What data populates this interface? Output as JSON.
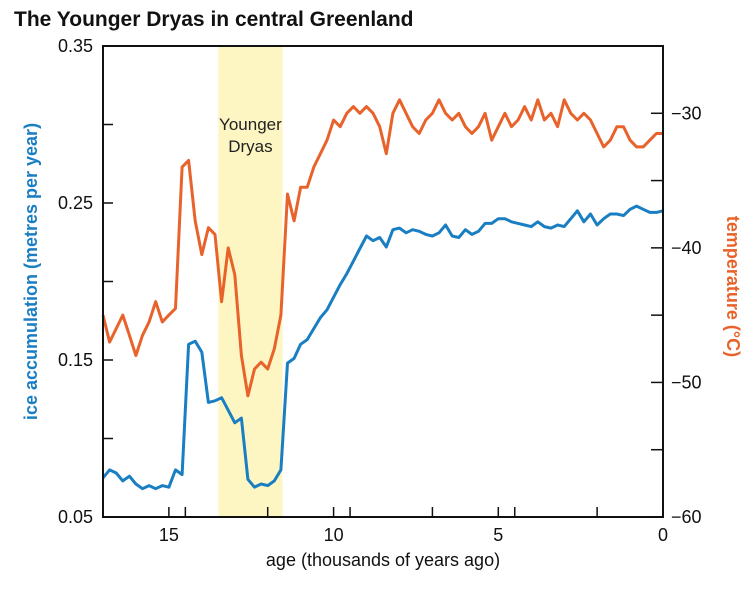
{
  "chart_data": {
    "type": "line",
    "title": "The Younger Dryas in central Greenland",
    "xlabel": "age (thousands of years ago)",
    "ylabel_left": "ice accumulation (metres per year)",
    "ylabel_right": "temperature (°C)",
    "x_range": [
      17,
      0
    ],
    "x_reversed": true,
    "x_ticks": [
      15,
      10,
      5,
      0
    ],
    "x_tick_labels": [
      "15",
      "10",
      "5",
      "0"
    ],
    "ylim_left": [
      0.05,
      0.35
    ],
    "y_left_ticks": [
      0.05,
      0.15,
      0.25,
      0.35
    ],
    "y_left_tick_labels": [
      "0.05",
      "0.15",
      "0.25",
      "0.35"
    ],
    "ylim_right": [
      -60,
      -25
    ],
    "y_right_ticks": [
      -60,
      -50,
      -40,
      -30
    ],
    "y_right_tick_labels": [
      "−60",
      "−50",
      "−40",
      "−30"
    ],
    "highlight_band": {
      "label_line1": "Younger",
      "label_line2": "Dryas",
      "x_start": 13.5,
      "x_end": 11.55,
      "color": "#fdf6c3"
    },
    "colors": {
      "ice": "#1a7ec2",
      "temperature": "#e8632b",
      "axes": "#111111"
    },
    "series": [
      {
        "name": "ice accumulation",
        "axis": "left",
        "color": "#1a7ec2",
        "x": [
          17.0,
          16.8,
          16.6,
          16.4,
          16.2,
          16.0,
          15.8,
          15.6,
          15.4,
          15.2,
          15.0,
          14.8,
          14.6,
          14.4,
          14.2,
          14.0,
          13.8,
          13.6,
          13.4,
          13.2,
          13.0,
          12.8,
          12.6,
          12.4,
          12.2,
          12.0,
          11.8,
          11.6,
          11.4,
          11.2,
          11.0,
          10.8,
          10.6,
          10.4,
          10.2,
          10.0,
          9.8,
          9.6,
          9.4,
          9.2,
          9.0,
          8.8,
          8.6,
          8.4,
          8.2,
          8.0,
          7.8,
          7.6,
          7.4,
          7.2,
          7.0,
          6.8,
          6.6,
          6.4,
          6.2,
          6.0,
          5.8,
          5.6,
          5.4,
          5.2,
          5.0,
          4.8,
          4.6,
          4.4,
          4.2,
          4.0,
          3.8,
          3.6,
          3.4,
          3.2,
          3.0,
          2.8,
          2.6,
          2.4,
          2.2,
          2.0,
          1.8,
          1.6,
          1.4,
          1.2,
          1.0,
          0.8,
          0.6,
          0.4,
          0.2,
          0.0
        ],
        "values": [
          0.075,
          0.08,
          0.078,
          0.073,
          0.076,
          0.071,
          0.068,
          0.07,
          0.068,
          0.07,
          0.069,
          0.08,
          0.077,
          0.16,
          0.162,
          0.155,
          0.123,
          0.124,
          0.126,
          0.118,
          0.11,
          0.113,
          0.074,
          0.069,
          0.071,
          0.07,
          0.073,
          0.08,
          0.148,
          0.151,
          0.16,
          0.163,
          0.17,
          0.177,
          0.182,
          0.19,
          0.198,
          0.205,
          0.213,
          0.221,
          0.229,
          0.226,
          0.228,
          0.222,
          0.233,
          0.234,
          0.231,
          0.233,
          0.232,
          0.23,
          0.229,
          0.231,
          0.236,
          0.229,
          0.228,
          0.233,
          0.23,
          0.232,
          0.237,
          0.237,
          0.24,
          0.24,
          0.238,
          0.237,
          0.236,
          0.235,
          0.238,
          0.235,
          0.234,
          0.236,
          0.235,
          0.24,
          0.245,
          0.238,
          0.243,
          0.236,
          0.24,
          0.243,
          0.243,
          0.242,
          0.246,
          0.248,
          0.246,
          0.244,
          0.244,
          0.245
        ]
      },
      {
        "name": "temperature",
        "axis": "right",
        "color": "#e8632b",
        "x": [
          17.0,
          16.8,
          16.6,
          16.4,
          16.2,
          16.0,
          15.8,
          15.6,
          15.4,
          15.2,
          15.0,
          14.8,
          14.6,
          14.4,
          14.2,
          14.0,
          13.8,
          13.6,
          13.4,
          13.2,
          13.0,
          12.8,
          12.6,
          12.4,
          12.2,
          12.0,
          11.8,
          11.6,
          11.4,
          11.2,
          11.0,
          10.8,
          10.6,
          10.4,
          10.2,
          10.0,
          9.8,
          9.6,
          9.4,
          9.2,
          9.0,
          8.8,
          8.6,
          8.4,
          8.2,
          8.0,
          7.8,
          7.6,
          7.4,
          7.2,
          7.0,
          6.8,
          6.6,
          6.4,
          6.2,
          6.0,
          5.8,
          5.6,
          5.4,
          5.2,
          5.0,
          4.8,
          4.6,
          4.4,
          4.2,
          4.0,
          3.8,
          3.6,
          3.4,
          3.2,
          3.0,
          2.8,
          2.6,
          2.4,
          2.2,
          2.0,
          1.8,
          1.6,
          1.4,
          1.2,
          1.0,
          0.8,
          0.6,
          0.4,
          0.2,
          0.0
        ],
        "values": [
          -45.0,
          -47.0,
          -46.0,
          -45.0,
          -46.5,
          -48.0,
          -46.5,
          -45.5,
          -44.0,
          -45.5,
          -45.0,
          -44.5,
          -34.0,
          -33.5,
          -38.0,
          -40.5,
          -38.5,
          -39.0,
          -44.0,
          -40.0,
          -42.0,
          -48.0,
          -51.0,
          -49.0,
          -48.5,
          -49.0,
          -47.5,
          -45.0,
          -36.0,
          -38.0,
          -35.5,
          -35.5,
          -34.0,
          -33.0,
          -32.0,
          -30.5,
          -31.0,
          -30.0,
          -29.5,
          -30.0,
          -29.5,
          -30.0,
          -31.0,
          -33.0,
          -30.0,
          -29.0,
          -30.0,
          -31.0,
          -31.5,
          -30.5,
          -30.0,
          -29.0,
          -30.0,
          -30.5,
          -30.0,
          -31.0,
          -31.5,
          -31.0,
          -30.0,
          -32.0,
          -31.0,
          -30.0,
          -31.0,
          -30.5,
          -29.5,
          -30.5,
          -29.0,
          -30.5,
          -30.0,
          -31.0,
          -29.0,
          -30.0,
          -30.5,
          -30.0,
          -30.5,
          -31.5,
          -32.5,
          -32.0,
          -31.0,
          -31.0,
          -32.0,
          -32.5,
          -32.5,
          -32.0,
          -31.5,
          -31.5
        ]
      }
    ]
  }
}
